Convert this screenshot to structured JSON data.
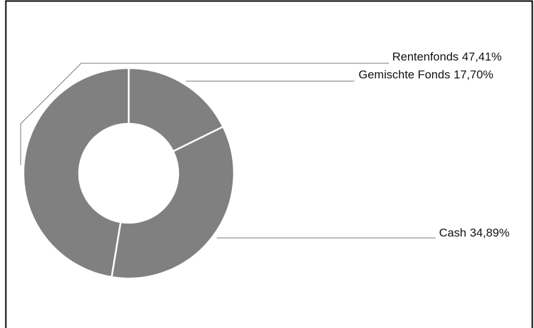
{
  "chart_data": {
    "type": "donut",
    "categories": [
      "Gemischte Fonds",
      "Cash",
      "Rentenfonds"
    ],
    "values": [
      17.7,
      34.89,
      47.41
    ],
    "value_labels": [
      "17,70%",
      "34,89%",
      "47,41%"
    ],
    "color": "#808080"
  }
}
